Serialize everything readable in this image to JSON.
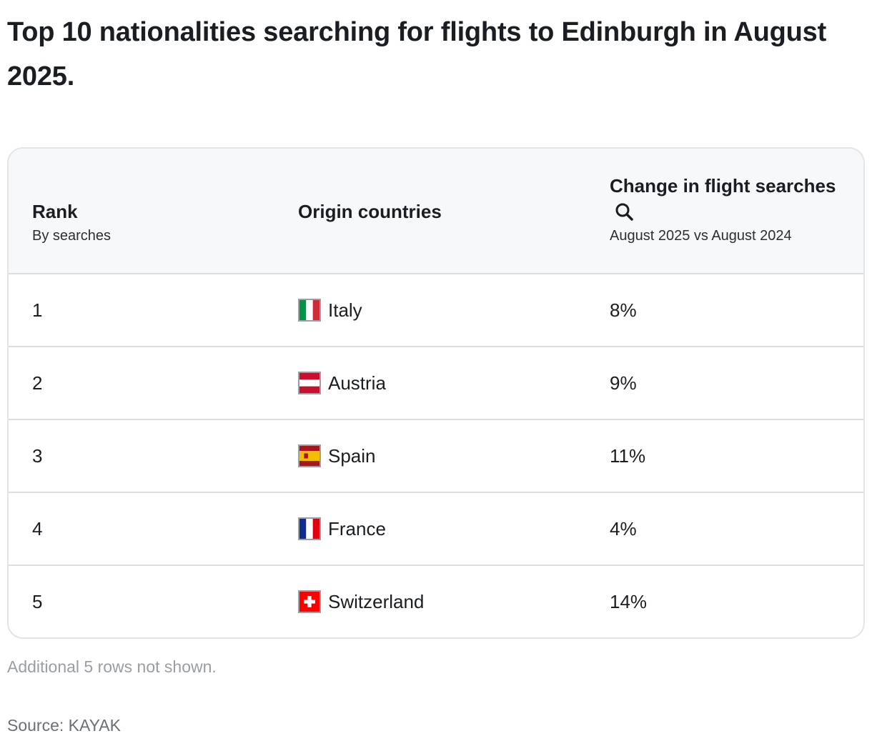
{
  "title": "Top 10 nationalities searching for flights to Edinburgh in August 2025.",
  "table": {
    "columns": [
      {
        "label": "Rank",
        "sublabel": "By searches"
      },
      {
        "label": "Origin countries",
        "sublabel": ""
      },
      {
        "label": "Change in flight searches",
        "sublabel": "August 2025 vs August 2024",
        "icon": "search-icon"
      }
    ],
    "rows": [
      {
        "rank": "1",
        "country": "Italy",
        "flag": "italy-flag-icon",
        "change": "8%"
      },
      {
        "rank": "2",
        "country": "Austria",
        "flag": "austria-flag-icon",
        "change": "9%"
      },
      {
        "rank": "3",
        "country": "Spain",
        "flag": "spain-flag-icon",
        "change": "11%"
      },
      {
        "rank": "4",
        "country": "France",
        "flag": "france-flag-icon",
        "change": "4%"
      },
      {
        "rank": "5",
        "country": "Switzerland",
        "flag": "switzerland-flag-icon",
        "change": "14%"
      }
    ]
  },
  "note": "Additional 5 rows not shown.",
  "source": "Source: KAYAK",
  "chart_data": {
    "type": "table",
    "title": "Top 10 nationalities searching for flights to Edinburgh in August 2025.",
    "columns": [
      "Rank",
      "Origin countries",
      "Change in flight searches"
    ],
    "rows": [
      [
        1,
        "Italy",
        "8%"
      ],
      [
        2,
        "Austria",
        "9%"
      ],
      [
        3,
        "Spain",
        "11%"
      ],
      [
        4,
        "France",
        "4%"
      ],
      [
        5,
        "Switzerland",
        "14%"
      ]
    ]
  }
}
